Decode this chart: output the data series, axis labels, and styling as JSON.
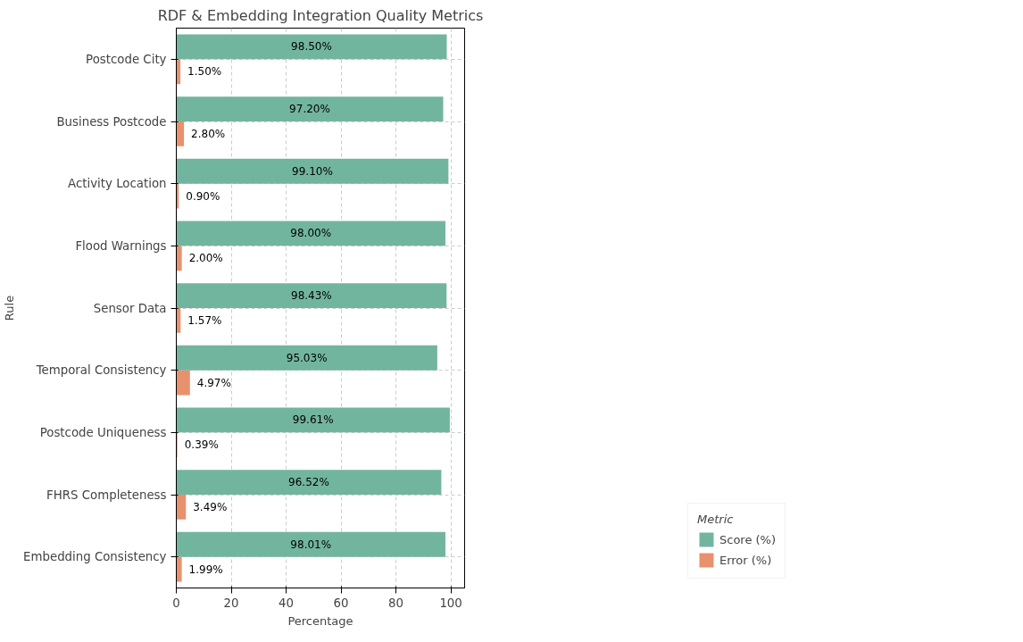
{
  "chart_data": {
    "type": "bar",
    "orientation": "horizontal",
    "title": "RDF & Embedding Integration Quality Metrics",
    "xlabel": "Percentage",
    "ylabel": "Rule",
    "legend_title": "Metric",
    "categories": [
      "Postcode City",
      "Business Postcode",
      "Activity Location",
      "Flood Warnings",
      "Sensor Data",
      "Temporal Consistency",
      "Postcode Uniqueness",
      "FHRS Completeness",
      "Embedding Consistency"
    ],
    "series": [
      {
        "name": "Score (%)",
        "color": "#72b59f",
        "values": [
          98.5,
          97.2,
          99.1,
          98.0,
          98.43,
          95.03,
          99.61,
          96.52,
          98.01
        ],
        "value_labels": [
          "98.50%",
          "97.20%",
          "99.10%",
          "98.00%",
          "98.43%",
          "95.03%",
          "99.61%",
          "96.52%",
          "98.01%"
        ]
      },
      {
        "name": "Error (%)",
        "color": "#e8916e",
        "values": [
          1.5,
          2.8,
          0.9,
          2.0,
          1.57,
          4.97,
          0.39,
          3.49,
          1.99
        ],
        "value_labels": [
          "1.50%",
          "2.80%",
          "0.90%",
          "2.00%",
          "1.57%",
          "4.97%",
          "0.39%",
          "3.49%",
          "1.99%"
        ]
      }
    ],
    "xlim": [
      0,
      105
    ],
    "xticks": [
      0,
      20,
      40,
      60,
      80,
      100
    ],
    "grid": true,
    "legend": "bottom right"
  }
}
